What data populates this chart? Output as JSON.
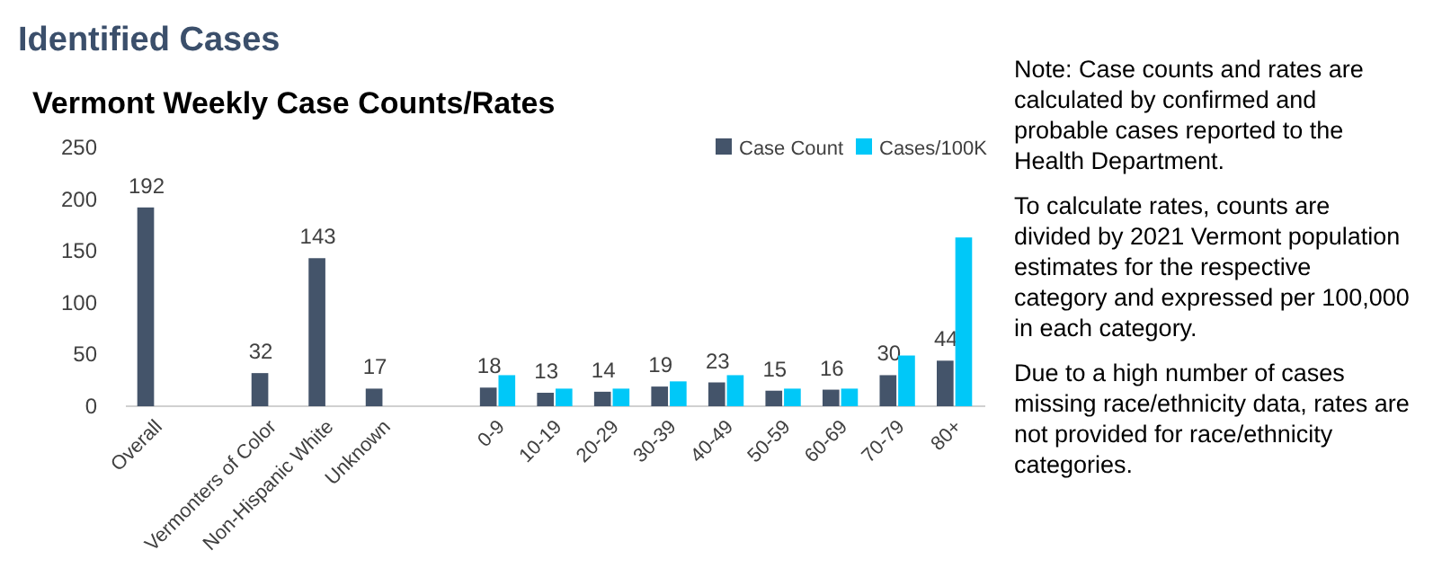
{
  "chart_data": {
    "type": "bar",
    "title": "Identified Cases",
    "subtitle": "Vermont Weekly Case Counts/Rates",
    "categories": [
      "Overall",
      null,
      "Vermonters of Color",
      "Non-Hispanic White",
      "Unknown",
      null,
      "0-9",
      "10-19",
      "20-29",
      "30-39",
      "40-49",
      "50-59",
      "60-69",
      "70-79",
      "80+"
    ],
    "series": [
      {
        "name": "Case Count",
        "color": "#44546a",
        "values": [
          192,
          null,
          32,
          143,
          17,
          null,
          18,
          13,
          14,
          19,
          23,
          15,
          16,
          30,
          44
        ],
        "value_labels": [
          "192",
          null,
          "32",
          "143",
          "17",
          null,
          "18",
          "13",
          "14",
          "19",
          "23",
          "15",
          "16",
          "30",
          "44"
        ]
      },
      {
        "name": "Cases/100K",
        "color": "#00c8f8",
        "values": [
          null,
          null,
          null,
          null,
          null,
          null,
          30,
          17,
          17,
          24,
          30,
          17,
          17,
          49,
          163
        ]
      }
    ],
    "ylim": [
      0,
      250
    ],
    "yticks": [
      0,
      50,
      100,
      150,
      200,
      250
    ],
    "grid": false,
    "legend": "top right",
    "annotations": [
      "Note: Case counts and rates are calculated by confirmed and probable cases reported to the Health Department.",
      "To calculate rates, counts are divided by 2021 Vermont population estimates for the respective category and expressed per 100,000 in each category.",
      "Due to a high number of cases missing race/ethnicity data, rates are not provided for race/ethnicity categories."
    ]
  }
}
